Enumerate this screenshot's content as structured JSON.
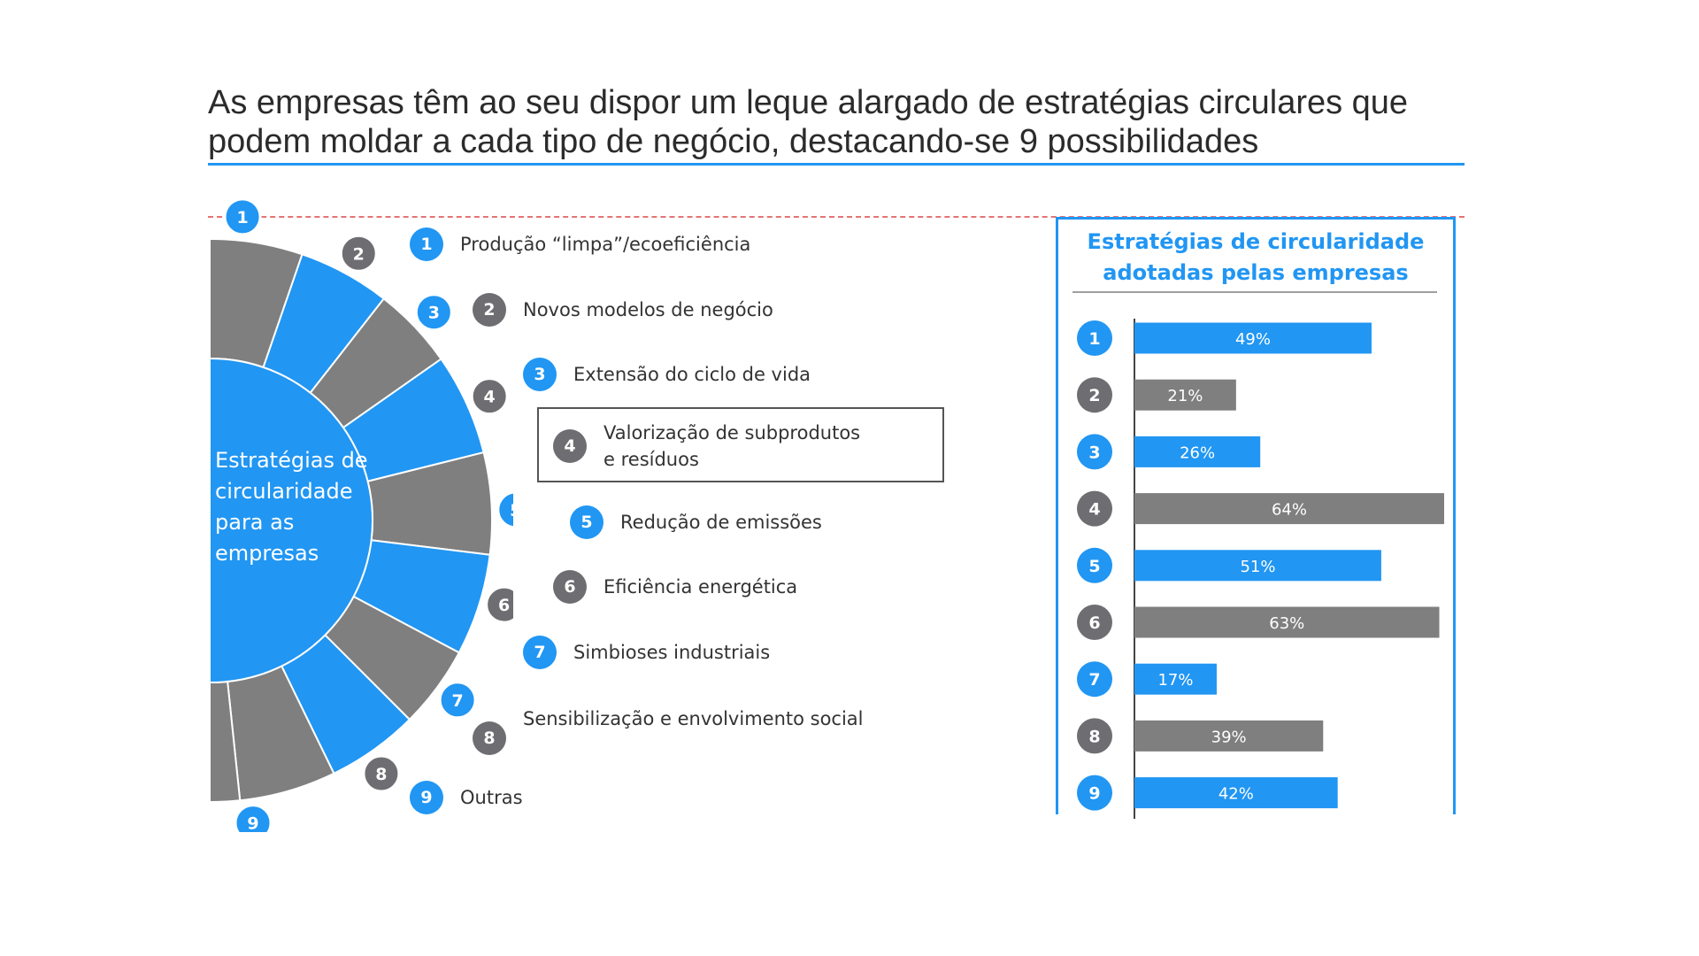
{
  "header": {
    "title": "As empresas têm ao seu dispor um leque alargado de estratégias circulares que podem moldar a cada tipo de negócio, destacando-se 9 possibilidades"
  },
  "wheel": {
    "center_label": [
      "Estratégias de",
      "circularidade",
      "para as",
      "empresas"
    ]
  },
  "strategies": [
    {
      "num": "1",
      "label": "Produção “limpa”/ecoeficiência"
    },
    {
      "num": "2",
      "label": "Novos modelos de negócio"
    },
    {
      "num": "3",
      "label": "Extensão do ciclo de vida"
    },
    {
      "num": "4",
      "label": "Valorização de subprodutos e resíduos",
      "lines": [
        "Valorização de subprodutos",
        "e resíduos"
      ]
    },
    {
      "num": "5",
      "label": "Redução de emissões"
    },
    {
      "num": "6",
      "label": "Eficiência energética"
    },
    {
      "num": "7",
      "label": "Simbioses industriais"
    },
    {
      "num": "8",
      "label": "Sensibilização e envolvimento social"
    },
    {
      "num": "9",
      "label": "Outras"
    }
  ],
  "colors": {
    "blue": "#2196f3",
    "gray": "#7f7f7f",
    "badge_gray": "#6e6e72"
  },
  "panel": {
    "title_line1": "Estratégias de circularidade",
    "title_line2": "adotadas pelas empresas"
  },
  "chart_data": {
    "type": "bar",
    "orientation": "horizontal",
    "title": "Estratégias de circularidade adotadas pelas empresas",
    "categories": [
      "1",
      "2",
      "3",
      "4",
      "5",
      "6",
      "7",
      "8",
      "9"
    ],
    "values": [
      49,
      21,
      26,
      64,
      51,
      63,
      17,
      39,
      42
    ],
    "value_labels": [
      "49%",
      "21%",
      "26%",
      "64%",
      "51%",
      "63%",
      "17%",
      "39%",
      "42%"
    ],
    "unit": "%",
    "xlim": [
      0,
      64
    ],
    "grid": false,
    "legend": "none",
    "bar_colors": [
      "#2196f3",
      "#7f7f7f",
      "#2196f3",
      "#7f7f7f",
      "#2196f3",
      "#7f7f7f",
      "#2196f3",
      "#7f7f7f",
      "#2196f3"
    ]
  }
}
